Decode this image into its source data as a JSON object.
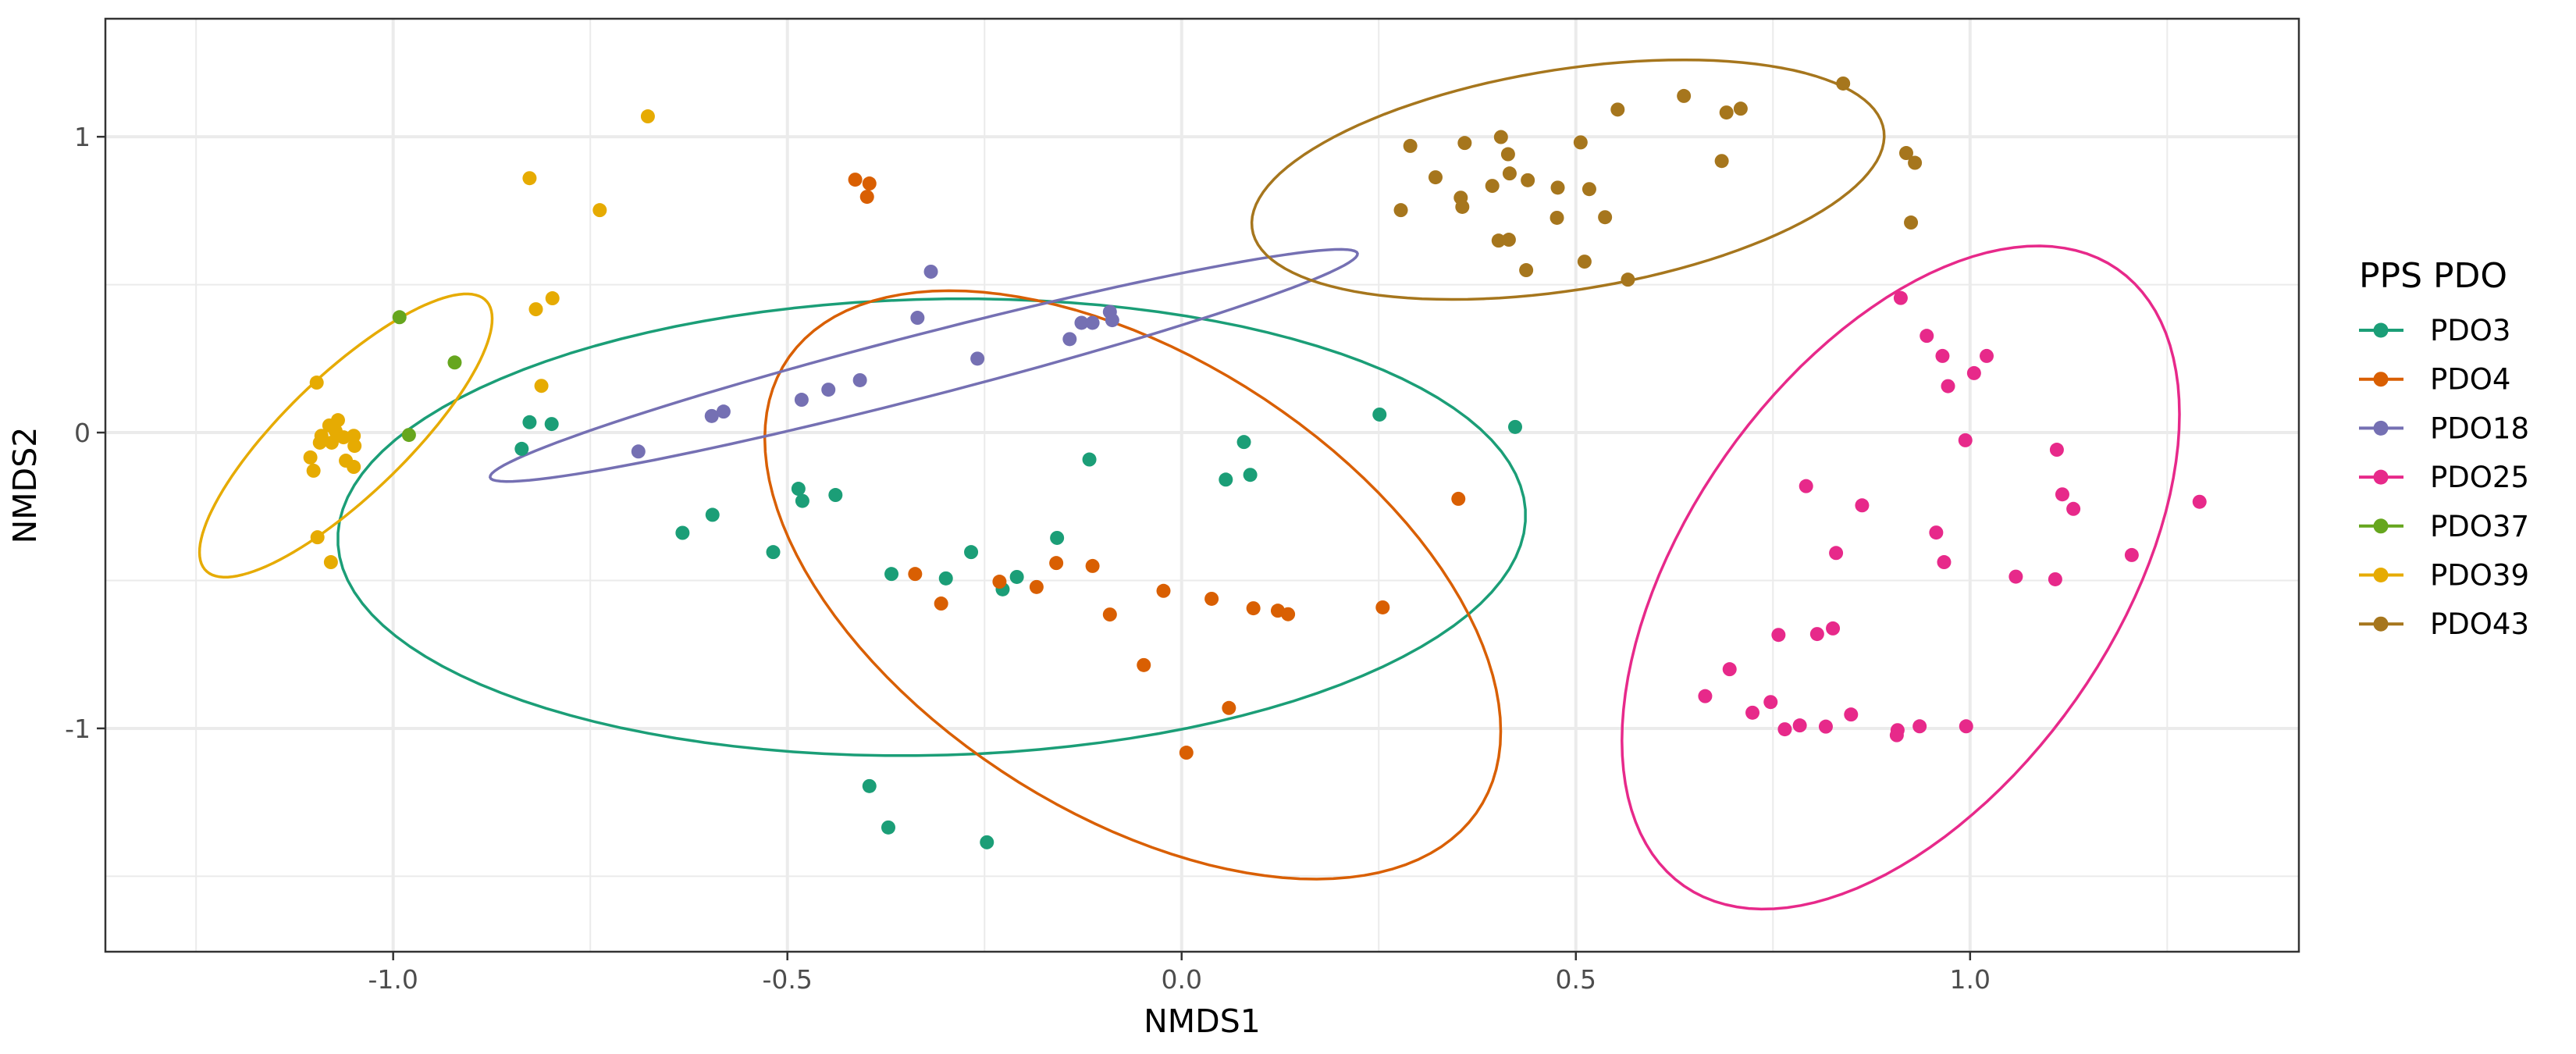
{
  "chart_data": {
    "type": "scatter",
    "title": "",
    "xlabel": "NMDS1",
    "ylabel": "NMDS2",
    "xlim": [
      -1.365,
      1.417
    ],
    "ylim": [
      -1.755,
      1.399
    ],
    "x_ticks": [
      -1.0,
      -0.5,
      0.0,
      0.5,
      1.0
    ],
    "x_tick_labels": [
      "-1.0",
      "-0.5",
      "0.0",
      "0.5",
      "1.0"
    ],
    "y_ticks": [
      -1,
      0,
      1
    ],
    "y_tick_labels": [
      "-1",
      "0",
      "1"
    ],
    "x_minor_grid": [
      -1.25,
      -0.75,
      -0.25,
      0.25,
      0.75,
      1.25
    ],
    "y_minor_grid": [
      -1.5,
      -0.5,
      0.5
    ],
    "grid": true,
    "legend": {
      "title": "PPS PDO",
      "placement": "right",
      "entries": [
        "PDO3",
        "PDO4",
        "PDO18",
        "PDO25",
        "PDO37",
        "PDO39",
        "PDO43"
      ]
    },
    "ellipse_type": "confidence ellipse per group",
    "series": [
      {
        "name": "PDO3",
        "color": "#1B9E77",
        "points": [
          [
            -0.827,
            0.035
          ],
          [
            -0.799,
            0.029
          ],
          [
            -0.837,
            -0.055
          ],
          [
            -0.486,
            -0.19
          ],
          [
            -0.481,
            -0.231
          ],
          [
            -0.439,
            -0.211
          ],
          [
            -0.595,
            -0.278
          ],
          [
            -0.633,
            -0.339
          ],
          [
            -0.518,
            -0.404
          ],
          [
            -0.368,
            -0.478
          ],
          [
            -0.299,
            -0.493
          ],
          [
            -0.267,
            -0.404
          ],
          [
            -0.209,
            -0.488
          ],
          [
            -0.227,
            -0.53
          ],
          [
            -0.158,
            -0.356
          ],
          [
            -0.117,
            -0.091
          ],
          [
            0.056,
            -0.159
          ],
          [
            0.087,
            -0.143
          ],
          [
            0.079,
            -0.032
          ],
          [
            0.251,
            0.061
          ],
          [
            0.423,
            0.019
          ],
          [
            -0.396,
            -1.195
          ],
          [
            -0.372,
            -1.335
          ],
          [
            -0.247,
            -1.385
          ]
        ],
        "ellipse": {
          "center": [
            -0.317,
            -0.32
          ],
          "a": [
            0.753,
            0.06
          ],
          "b": [
            -0.02,
            0.77
          ]
        }
      },
      {
        "name": "PDO4",
        "color": "#D95F02",
        "points": [
          [
            -0.414,
            0.855
          ],
          [
            -0.396,
            0.842
          ],
          [
            -0.399,
            0.797
          ],
          [
            -0.338,
            -0.478
          ],
          [
            -0.305,
            -0.578
          ],
          [
            -0.231,
            -0.504
          ],
          [
            -0.184,
            -0.522
          ],
          [
            -0.159,
            -0.441
          ],
          [
            -0.113,
            -0.451
          ],
          [
            -0.091,
            -0.615
          ],
          [
            -0.023,
            -0.535
          ],
          [
            -0.048,
            -0.786
          ],
          [
            0.038,
            -0.562
          ],
          [
            0.091,
            -0.594
          ],
          [
            0.122,
            -0.602
          ],
          [
            0.135,
            -0.614
          ],
          [
            0.255,
            -0.591
          ],
          [
            0.06,
            -0.931
          ],
          [
            0.006,
            -1.082
          ],
          [
            0.351,
            -0.224
          ]
        ],
        "ellipse": {
          "center": [
            -0.062,
            -0.515
          ],
          "a": [
            0.33,
            -0.96
          ],
          "b": [
            0.33,
            0.26
          ]
        }
      },
      {
        "name": "PDO18",
        "color": "#7570B3",
        "points": [
          [
            -0.318,
            0.544
          ],
          [
            -0.335,
            0.388
          ],
          [
            -0.408,
            0.177
          ],
          [
            -0.448,
            0.145
          ],
          [
            -0.482,
            0.111
          ],
          [
            -0.581,
            0.071
          ],
          [
            -0.596,
            0.056
          ],
          [
            -0.689,
            -0.064
          ],
          [
            -0.259,
            0.25
          ],
          [
            -0.142,
            0.316
          ],
          [
            -0.127,
            0.371
          ],
          [
            -0.113,
            0.371
          ],
          [
            -0.091,
            0.408
          ],
          [
            -0.088,
            0.38
          ]
        ],
        "ellipse": {
          "center": [
            -0.327,
            0.227
          ],
          "a": [
            0.549,
            0.383
          ],
          "b": [
            -0.035,
            0.085
          ]
        }
      },
      {
        "name": "PDO25",
        "color": "#E7298A",
        "points": [
          [
            0.912,
            0.455
          ],
          [
            0.945,
            0.327
          ],
          [
            0.965,
            0.259
          ],
          [
            1.021,
            0.259
          ],
          [
            1.005,
            0.201
          ],
          [
            0.972,
            0.157
          ],
          [
            0.994,
            -0.026
          ],
          [
            1.11,
            -0.058
          ],
          [
            0.792,
            -0.181
          ],
          [
            0.863,
            -0.246
          ],
          [
            1.117,
            -0.209
          ],
          [
            1.131,
            -0.258
          ],
          [
            1.291,
            -0.234
          ],
          [
            0.957,
            -0.338
          ],
          [
            0.83,
            -0.407
          ],
          [
            0.967,
            -0.438
          ],
          [
            1.205,
            -0.414
          ],
          [
            1.058,
            -0.487
          ],
          [
            1.108,
            -0.496
          ],
          [
            0.757,
            -0.684
          ],
          [
            0.806,
            -0.681
          ],
          [
            0.826,
            -0.662
          ],
          [
            0.695,
            -0.8
          ],
          [
            0.664,
            -0.891
          ],
          [
            0.747,
            -0.911
          ],
          [
            0.724,
            -0.947
          ],
          [
            0.849,
            -0.953
          ],
          [
            0.765,
            -1.003
          ],
          [
            0.784,
            -0.99
          ],
          [
            0.817,
            -0.994
          ],
          [
            0.908,
            -1.006
          ],
          [
            0.907,
            -1.023
          ],
          [
            0.936,
            -0.993
          ],
          [
            0.995,
            -0.993
          ]
        ],
        "ellipse": {
          "center": [
            0.912,
            -0.49
          ],
          "a": [
            0.25,
            1.08
          ],
          "b": [
            0.25,
            -0.3
          ]
        }
      },
      {
        "name": "PDO37",
        "color": "#66A61E",
        "points": [
          [
            -0.992,
            0.39
          ],
          [
            -0.922,
            0.237
          ],
          [
            -0.98,
            -0.008
          ]
        ]
      },
      {
        "name": "PDO39",
        "color": "#E6AB02",
        "points": [
          [
            -0.677,
            1.069
          ],
          [
            -0.827,
            0.86
          ],
          [
            -0.738,
            0.752
          ],
          [
            -0.798,
            0.454
          ],
          [
            -0.819,
            0.417
          ],
          [
            -0.812,
            0.158
          ],
          [
            -1.097,
            0.169
          ],
          [
            -1.07,
            0.042
          ],
          [
            -1.081,
            0.024
          ],
          [
            -1.073,
            0.005
          ],
          [
            -1.091,
            -0.011
          ],
          [
            -1.078,
            -0.034
          ],
          [
            -1.063,
            -0.016
          ],
          [
            -1.05,
            -0.011
          ],
          [
            -1.049,
            -0.045
          ],
          [
            -1.093,
            -0.034
          ],
          [
            -1.105,
            -0.084
          ],
          [
            -1.101,
            -0.129
          ],
          [
            -1.06,
            -0.095
          ],
          [
            -1.05,
            -0.116
          ],
          [
            -1.096,
            -0.354
          ],
          [
            -1.079,
            -0.438
          ]
        ],
        "ellipse": {
          "center": [
            -1.06,
            -0.01
          ],
          "a": [
            0.165,
            0.475
          ],
          "b": [
            0.085,
            -0.06
          ]
        }
      },
      {
        "name": "PDO43",
        "color": "#A6761D",
        "points": [
          [
            0.839,
            1.18
          ],
          [
            0.637,
            1.138
          ],
          [
            0.553,
            1.092
          ],
          [
            0.691,
            1.082
          ],
          [
            0.709,
            1.095
          ],
          [
            0.405,
            0.999
          ],
          [
            0.359,
            0.979
          ],
          [
            0.29,
            0.969
          ],
          [
            0.506,
            0.981
          ],
          [
            0.414,
            0.941
          ],
          [
            0.685,
            0.918
          ],
          [
            0.919,
            0.945
          ],
          [
            0.93,
            0.912
          ],
          [
            0.322,
            0.863
          ],
          [
            0.416,
            0.876
          ],
          [
            0.439,
            0.853
          ],
          [
            0.394,
            0.834
          ],
          [
            0.477,
            0.828
          ],
          [
            0.517,
            0.823
          ],
          [
            0.354,
            0.794
          ],
          [
            0.356,
            0.763
          ],
          [
            0.278,
            0.752
          ],
          [
            0.476,
            0.726
          ],
          [
            0.537,
            0.728
          ],
          [
            0.925,
            0.71
          ],
          [
            0.402,
            0.649
          ],
          [
            0.415,
            0.652
          ],
          [
            0.511,
            0.578
          ],
          [
            0.437,
            0.549
          ],
          [
            0.566,
            0.517
          ]
        ],
        "ellipse": {
          "center": [
            0.49,
            0.855
          ],
          "a": [
            0.393,
            0.22
          ],
          "b": [
            -0.08,
            0.34
          ]
        }
      }
    ]
  }
}
